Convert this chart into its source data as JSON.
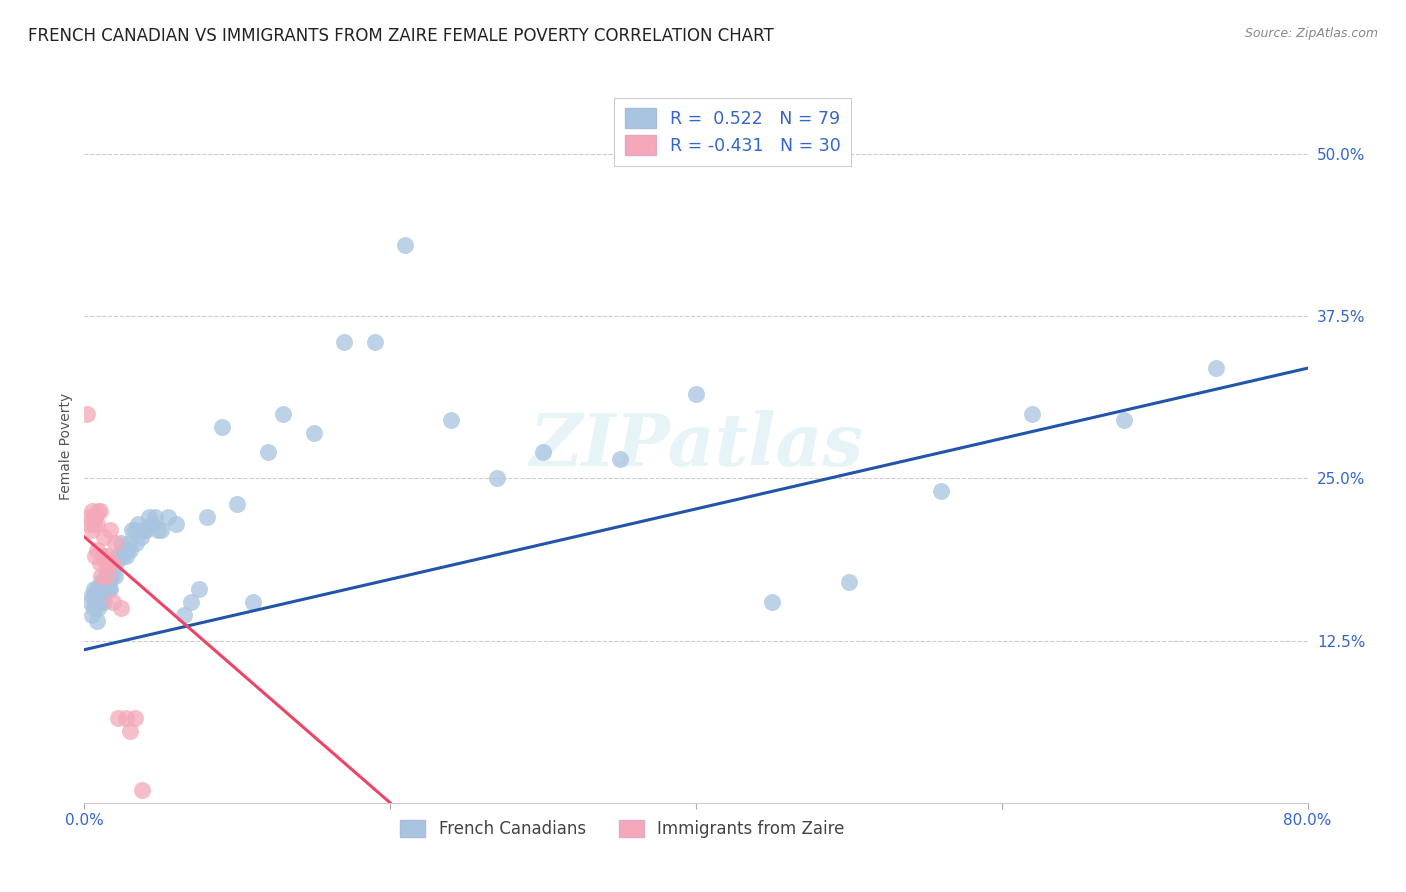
{
  "title": "FRENCH CANADIAN VS IMMIGRANTS FROM ZAIRE FEMALE POVERTY CORRELATION CHART",
  "source": "Source: ZipAtlas.com",
  "ylabel": "Female Poverty",
  "ytick_labels": [
    "12.5%",
    "25.0%",
    "37.5%",
    "50.0%"
  ],
  "ytick_values": [
    0.125,
    0.25,
    0.375,
    0.5
  ],
  "xlim": [
    0.0,
    0.8
  ],
  "ylim": [
    0.0,
    0.55
  ],
  "blue_color": "#A8C4E0",
  "pink_color": "#F4A8B8",
  "blue_line_color": "#2255AA",
  "pink_line_color": "#EE4466",
  "background_color": "#FFFFFF",
  "title_fontsize": 12,
  "axis_label_fontsize": 10,
  "tick_fontsize": 11,
  "blue_scatter_x": [
    0.004,
    0.005,
    0.005,
    0.006,
    0.006,
    0.007,
    0.007,
    0.008,
    0.008,
    0.009,
    0.009,
    0.01,
    0.01,
    0.011,
    0.011,
    0.012,
    0.012,
    0.013,
    0.013,
    0.014,
    0.014,
    0.015,
    0.015,
    0.016,
    0.016,
    0.017,
    0.017,
    0.018,
    0.019,
    0.02,
    0.02,
    0.021,
    0.022,
    0.023,
    0.024,
    0.025,
    0.026,
    0.027,
    0.028,
    0.029,
    0.03,
    0.031,
    0.033,
    0.034,
    0.035,
    0.037,
    0.039,
    0.04,
    0.042,
    0.044,
    0.046,
    0.048,
    0.05,
    0.055,
    0.06,
    0.065,
    0.07,
    0.075,
    0.08,
    0.09,
    0.1,
    0.11,
    0.12,
    0.13,
    0.15,
    0.17,
    0.19,
    0.21,
    0.24,
    0.27,
    0.3,
    0.35,
    0.4,
    0.45,
    0.5,
    0.56,
    0.62,
    0.68,
    0.74
  ],
  "blue_scatter_y": [
    0.155,
    0.16,
    0.145,
    0.15,
    0.165,
    0.155,
    0.16,
    0.14,
    0.165,
    0.15,
    0.16,
    0.155,
    0.165,
    0.155,
    0.17,
    0.16,
    0.165,
    0.17,
    0.155,
    0.165,
    0.175,
    0.175,
    0.165,
    0.17,
    0.165,
    0.165,
    0.175,
    0.175,
    0.18,
    0.175,
    0.185,
    0.185,
    0.19,
    0.19,
    0.2,
    0.19,
    0.195,
    0.19,
    0.195,
    0.2,
    0.195,
    0.21,
    0.21,
    0.2,
    0.215,
    0.205,
    0.21,
    0.21,
    0.22,
    0.215,
    0.22,
    0.21,
    0.21,
    0.22,
    0.215,
    0.145,
    0.155,
    0.165,
    0.22,
    0.29,
    0.23,
    0.155,
    0.27,
    0.3,
    0.285,
    0.355,
    0.355,
    0.43,
    0.295,
    0.25,
    0.27,
    0.265,
    0.315,
    0.155,
    0.17,
    0.24,
    0.3,
    0.295,
    0.335
  ],
  "pink_scatter_x": [
    0.002,
    0.003,
    0.004,
    0.005,
    0.005,
    0.006,
    0.007,
    0.007,
    0.008,
    0.008,
    0.009,
    0.01,
    0.01,
    0.011,
    0.012,
    0.013,
    0.014,
    0.015,
    0.015,
    0.016,
    0.017,
    0.018,
    0.019,
    0.02,
    0.022,
    0.024,
    0.027,
    0.03,
    0.033,
    0.038
  ],
  "pink_scatter_y": [
    0.3,
    0.22,
    0.215,
    0.21,
    0.225,
    0.215,
    0.22,
    0.19,
    0.215,
    0.195,
    0.225,
    0.225,
    0.185,
    0.175,
    0.19,
    0.205,
    0.185,
    0.19,
    0.175,
    0.185,
    0.21,
    0.185,
    0.155,
    0.2,
    0.065,
    0.15,
    0.065,
    0.055,
    0.065,
    0.01
  ],
  "blue_trendline_x": [
    0.0,
    0.8
  ],
  "blue_trendline_y": [
    0.118,
    0.335
  ],
  "pink_trendline_x": [
    0.0,
    0.2
  ],
  "pink_trendline_y": [
    0.205,
    0.0
  ]
}
